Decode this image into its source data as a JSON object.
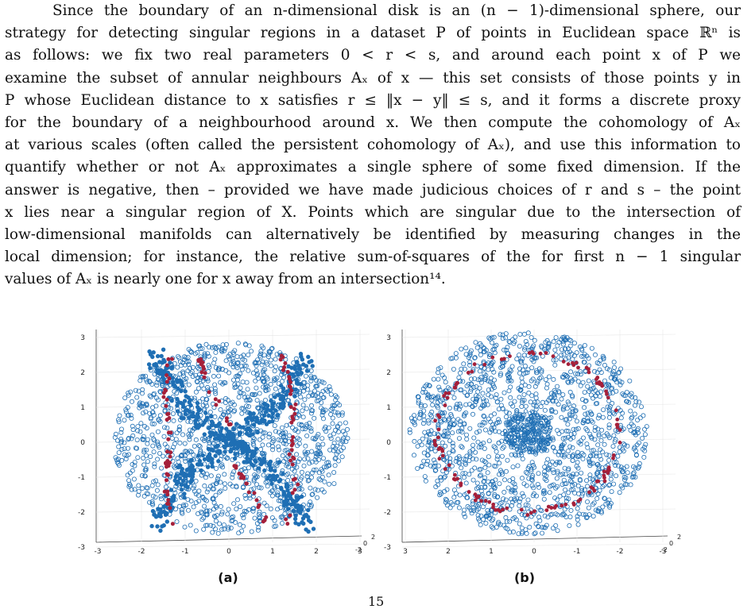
{
  "paragraph": {
    "lines": [
      "Since the boundary of an n-dimensional disk is an (n − 1)-dimensional sphere, our",
      "strategy for detecting singular regions in a dataset P of points in Euclidean space ℝⁿ is",
      "as follows: we fix two real parameters 0 < r < s, and around each point x of P we",
      "examine the subset of annular neighbours Aₓ of x — this set consists of those points y in",
      "P whose Euclidean distance to x satisfies r ≤ ‖x − y‖ ≤ s, and it forms a discrete proxy",
      "for the boundary of a neighbourhood around x. We then compute the cohomology of Aₓ",
      "at various scales (often called the persistent cohomology of Aₓ), and use this information to",
      "quantify whether or not Aₓ approximates a single sphere of some fixed dimension. If the",
      "answer is negative, then – provided we have made judicious choices of r and s – the point",
      "x lies near a singular region of X. Points which are singular due to the intersection of",
      "low-dimensional manifolds can alternatively be identified by measuring changes in the",
      "local dimension; for instance, the relative sum-of-squares of the for first n − 1 singular",
      "values of Aₓ is nearly one for x away from an intersection¹⁴."
    ]
  },
  "figures": {
    "a": {
      "caption": "(a)",
      "y_ticks": [
        "3",
        "2",
        "1",
        "0",
        "-1",
        "-2",
        "-3"
      ],
      "x_ticks": [
        "-3",
        "-2",
        "-1",
        "0",
        "1",
        "2",
        "3"
      ],
      "z_ticks": [
        "-2",
        "0",
        "2"
      ]
    },
    "b": {
      "caption": "(b)",
      "y_ticks": [
        "3",
        "2",
        "1",
        "0",
        "-1",
        "-2",
        "-3"
      ],
      "x_ticks": [
        "3",
        "2",
        "1",
        "0",
        "-1",
        "-2",
        "-3"
      ],
      "z_ticks": [
        "-2",
        "0",
        "2"
      ]
    },
    "colors": {
      "points": "#1f6fb4",
      "singular": "#a5203a",
      "axis": "#444444",
      "grid": "#e6e6e6"
    }
  },
  "page_number": "15"
}
